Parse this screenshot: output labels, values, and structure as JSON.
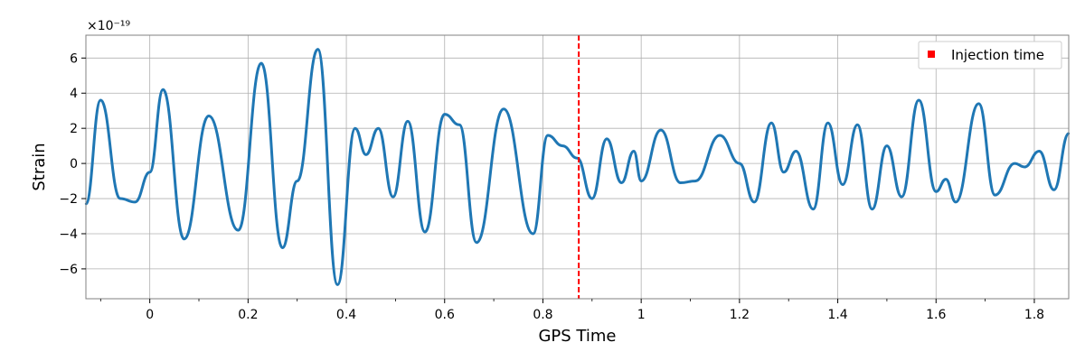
{
  "chart_data": {
    "type": "line",
    "xlabel": "GPS Time",
    "ylabel": "Strain",
    "y_offset_text": "×10⁻¹⁹",
    "y_scale_exponent": -19,
    "xlim": [
      -0.13,
      1.87
    ],
    "ylim": [
      -7.7,
      7.3
    ],
    "x_ticks": [
      0,
      0.2,
      0.4,
      0.6,
      0.8,
      1,
      1.2,
      1.4,
      1.6,
      1.8
    ],
    "x_tick_labels": [
      "0",
      "0.2",
      "0.4",
      "0.6",
      "0.8",
      "1",
      "1.2",
      "1.4",
      "1.6",
      "1.8"
    ],
    "y_ticks": [
      -6,
      -4,
      -2,
      0,
      2,
      4,
      6
    ],
    "y_tick_labels": [
      "−6",
      "−4",
      "−2",
      "0",
      "2",
      "4",
      "6"
    ],
    "grid": true,
    "legend_position": "top-right",
    "series": [
      {
        "name": "",
        "color": "#1f77b4",
        "x": [
          -0.13,
          -0.1,
          -0.06,
          -0.03,
          0,
          0.027,
          0.07,
          0.12,
          0.18,
          0.227,
          0.27,
          0.3,
          0.342,
          0.382,
          0.418,
          0.44,
          0.465,
          0.495,
          0.525,
          0.56,
          0.6,
          0.63,
          0.665,
          0.72,
          0.78,
          0.81,
          0.84,
          0.87,
          0.9,
          0.93,
          0.96,
          0.985,
          1.0,
          1.04,
          1.08,
          1.11,
          1.16,
          1.2,
          1.23,
          1.265,
          1.29,
          1.315,
          1.35,
          1.38,
          1.41,
          1.44,
          1.47,
          1.5,
          1.53,
          1.565,
          1.6,
          1.62,
          1.64,
          1.687,
          1.72,
          1.76,
          1.78,
          1.81,
          1.84,
          1.87
        ],
        "y": [
          -2.3,
          3.6,
          -2.0,
          -2.2,
          -0.5,
          4.2,
          -4.3,
          2.7,
          -3.8,
          5.7,
          -4.8,
          -1.0,
          6.5,
          -6.9,
          2.0,
          0.5,
          2.0,
          -1.9,
          2.4,
          -3.9,
          2.8,
          2.2,
          -4.5,
          3.1,
          -4.0,
          1.6,
          1.0,
          0.3,
          -2.0,
          1.4,
          -1.1,
          0.7,
          -1.0,
          1.9,
          -1.1,
          -1.0,
          1.6,
          0.0,
          -2.2,
          2.3,
          -0.5,
          0.7,
          -2.6,
          2.3,
          -1.2,
          2.2,
          -2.6,
          1.0,
          -1.9,
          3.6,
          -1.6,
          -0.9,
          -2.2,
          3.4,
          -1.8,
          0.0,
          -0.2,
          0.7,
          -1.5,
          1.7
        ]
      }
    ],
    "vlines": [
      {
        "label": "Injection time",
        "x": 0.873,
        "color": "#ff0000",
        "style": "dashed"
      }
    ]
  }
}
